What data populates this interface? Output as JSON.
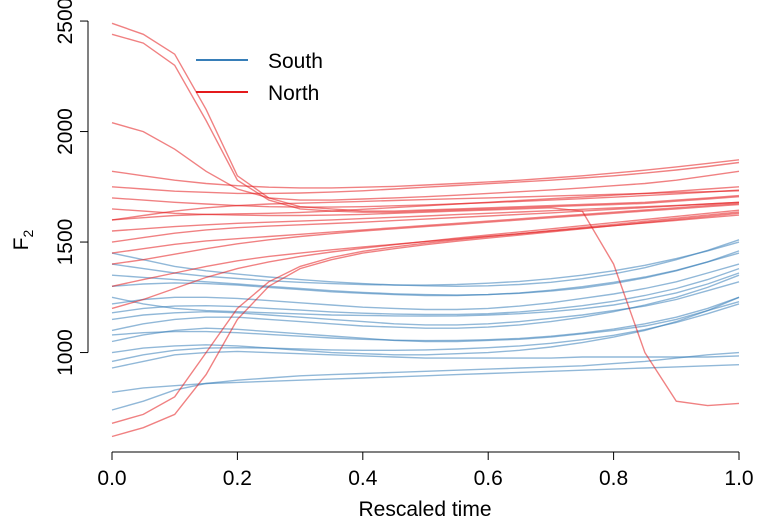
{
  "chart_data": {
    "type": "line",
    "xlabel": "Rescaled time",
    "ylabel": "F",
    "ylabel_subscript": "2",
    "xlim": [
      0.0,
      1.0
    ],
    "ylim": [
      550,
      2550
    ],
    "x_ticks": [
      "0.0",
      "0.2",
      "0.4",
      "0.6",
      "0.8",
      "1.0"
    ],
    "y_ticks": [
      "1000",
      "1500",
      "2000",
      "2500"
    ],
    "grid": false,
    "legend_position": "top-left",
    "legend": [
      {
        "name": "South",
        "color": "#377EB8"
      },
      {
        "name": "North",
        "color": "#E41A1C"
      }
    ],
    "x": [
      0.0,
      0.05,
      0.1,
      0.15,
      0.2,
      0.25,
      0.3,
      0.35,
      0.4,
      0.45,
      0.5,
      0.55,
      0.6,
      0.65,
      0.7,
      0.75,
      0.8,
      0.85,
      0.9,
      0.95,
      1.0
    ],
    "series": [
      {
        "group": "South",
        "values": [
          820,
          840,
          850,
          860,
          865,
          870,
          875,
          880,
          885,
          890,
          895,
          900,
          905,
          910,
          915,
          920,
          925,
          930,
          935,
          940,
          945
        ]
      },
      {
        "group": "South",
        "values": [
          740,
          780,
          830,
          860,
          875,
          885,
          895,
          900,
          905,
          910,
          915,
          920,
          925,
          930,
          935,
          940,
          950,
          960,
          975,
          990,
          1000
        ]
      },
      {
        "group": "South",
        "values": [
          930,
          960,
          990,
          1000,
          1005,
          1000,
          995,
          990,
          985,
          980,
          975,
          975,
          975,
          975,
          975,
          980,
          980,
          980,
          980,
          980,
          985
        ]
      },
      {
        "group": "South",
        "values": [
          1050,
          1080,
          1100,
          1110,
          1105,
          1095,
          1085,
          1075,
          1065,
          1055,
          1050,
          1050,
          1055,
          1060,
          1070,
          1085,
          1100,
          1120,
          1150,
          1190,
          1230
        ]
      },
      {
        "group": "South",
        "values": [
          1150,
          1170,
          1180,
          1185,
          1180,
          1170,
          1160,
          1150,
          1140,
          1130,
          1125,
          1125,
          1130,
          1140,
          1155,
          1170,
          1190,
          1210,
          1240,
          1280,
          1320
        ]
      },
      {
        "group": "South",
        "values": [
          1220,
          1240,
          1250,
          1250,
          1245,
          1235,
          1225,
          1215,
          1205,
          1200,
          1195,
          1195,
          1200,
          1210,
          1225,
          1245,
          1265,
          1290,
          1320,
          1360,
          1400
        ]
      },
      {
        "group": "South",
        "values": [
          1300,
          1310,
          1315,
          1312,
          1305,
          1295,
          1285,
          1275,
          1268,
          1262,
          1258,
          1258,
          1262,
          1270,
          1282,
          1298,
          1318,
          1342,
          1372,
          1410,
          1450
        ]
      },
      {
        "group": "South",
        "values": [
          1400,
          1380,
          1360,
          1345,
          1335,
          1325,
          1318,
          1312,
          1308,
          1305,
          1305,
          1308,
          1314,
          1322,
          1334,
          1350,
          1370,
          1395,
          1425,
          1460,
          1500
        ]
      },
      {
        "group": "South",
        "values": [
          1000,
          1020,
          1030,
          1035,
          1030,
          1020,
          1010,
          1000,
          995,
          990,
          990,
          995,
          1000,
          1010,
          1025,
          1045,
          1070,
          1100,
          1140,
          1190,
          1250
        ]
      },
      {
        "group": "South",
        "values": [
          1100,
          1130,
          1150,
          1160,
          1160,
          1150,
          1140,
          1130,
          1120,
          1115,
          1110,
          1110,
          1115,
          1125,
          1140,
          1160,
          1185,
          1215,
          1250,
          1295,
          1350
        ]
      },
      {
        "group": "South",
        "values": [
          1250,
          1220,
          1200,
          1190,
          1185,
          1180,
          1175,
          1170,
          1168,
          1166,
          1165,
          1166,
          1170,
          1176,
          1185,
          1198,
          1215,
          1240,
          1270,
          1310,
          1360
        ]
      },
      {
        "group": "South",
        "values": [
          1350,
          1340,
          1330,
          1320,
          1310,
          1300,
          1290,
          1280,
          1272,
          1266,
          1262,
          1260,
          1262,
          1268,
          1278,
          1292,
          1312,
          1338,
          1370,
          1410,
          1460
        ]
      },
      {
        "group": "South",
        "values": [
          1080,
          1090,
          1095,
          1095,
          1090,
          1082,
          1074,
          1066,
          1060,
          1056,
          1054,
          1055,
          1058,
          1064,
          1074,
          1088,
          1106,
          1130,
          1160,
          1200,
          1250
        ]
      },
      {
        "group": "South",
        "values": [
          960,
          990,
          1010,
          1020,
          1022,
          1020,
          1016,
          1012,
          1010,
          1010,
          1012,
          1016,
          1022,
          1030,
          1042,
          1058,
          1078,
          1104,
          1136,
          1176,
          1220
        ]
      },
      {
        "group": "South",
        "values": [
          1180,
          1200,
          1210,
          1212,
          1208,
          1200,
          1192,
          1184,
          1178,
          1174,
          1172,
          1172,
          1176,
          1184,
          1196,
          1212,
          1232,
          1258,
          1290,
          1330,
          1380
        ]
      },
      {
        "group": "South",
        "values": [
          1450,
          1420,
          1390,
          1370,
          1355,
          1342,
          1330,
          1320,
          1312,
          1306,
          1302,
          1300,
          1302,
          1308,
          1318,
          1334,
          1356,
          1384,
          1420,
          1462,
          1510
        ]
      },
      {
        "group": "North",
        "values": [
          2490,
          2440,
          2350,
          2100,
          1800,
          1700,
          1660,
          1650,
          1640,
          1640,
          1645,
          1650,
          1655,
          1660,
          1665,
          1670,
          1675,
          1680,
          1690,
          1700,
          1710
        ]
      },
      {
        "group": "North",
        "values": [
          2440,
          2400,
          2300,
          2050,
          1780,
          1690,
          1650,
          1640,
          1635,
          1635,
          1640,
          1645,
          1650,
          1655,
          1660,
          1665,
          1670,
          1675,
          1685,
          1695,
          1705
        ]
      },
      {
        "group": "North",
        "values": [
          2040,
          2000,
          1920,
          1820,
          1740,
          1700,
          1690,
          1690,
          1695,
          1700,
          1705,
          1712,
          1720,
          1728,
          1736,
          1745,
          1755,
          1765,
          1780,
          1800,
          1820
        ]
      },
      {
        "group": "North",
        "values": [
          1750,
          1740,
          1730,
          1725,
          1720,
          1720,
          1722,
          1726,
          1732,
          1740,
          1748,
          1756,
          1764,
          1772,
          1780,
          1790,
          1800,
          1812,
          1826,
          1842,
          1860
        ]
      },
      {
        "group": "North",
        "values": [
          1600,
          1610,
          1620,
          1625,
          1628,
          1630,
          1634,
          1640,
          1648,
          1656,
          1664,
          1672,
          1680,
          1688,
          1696,
          1704,
          1712,
          1720,
          1730,
          1740,
          1750
        ]
      },
      {
        "group": "North",
        "values": [
          1450,
          1470,
          1490,
          1505,
          1515,
          1525,
          1535,
          1545,
          1555,
          1565,
          1575,
          1585,
          1595,
          1605,
          1615,
          1625,
          1635,
          1645,
          1655,
          1665,
          1675
        ]
      },
      {
        "group": "North",
        "values": [
          1300,
          1330,
          1360,
          1390,
          1415,
          1435,
          1450,
          1465,
          1478,
          1490,
          1502,
          1514,
          1526,
          1538,
          1550,
          1562,
          1574,
          1586,
          1598,
          1610,
          1622
        ]
      },
      {
        "group": "North",
        "values": [
          1200,
          1240,
          1290,
          1340,
          1380,
          1410,
          1435,
          1455,
          1472,
          1488,
          1503,
          1518,
          1532,
          1546,
          1560,
          1574,
          1588,
          1602,
          1616,
          1630,
          1644
        ]
      },
      {
        "group": "North",
        "values": [
          1550,
          1560,
          1570,
          1578,
          1585,
          1590,
          1595,
          1600,
          1606,
          1612,
          1618,
          1624,
          1630,
          1636,
          1642,
          1648,
          1654,
          1660,
          1666,
          1672,
          1680
        ]
      },
      {
        "group": "North",
        "values": [
          1700,
          1690,
          1680,
          1672,
          1665,
          1660,
          1658,
          1658,
          1660,
          1664,
          1668,
          1673,
          1678,
          1684,
          1690,
          1696,
          1703,
          1710,
          1718,
          1726,
          1735
        ]
      },
      {
        "group": "North",
        "values": [
          1400,
          1420,
          1445,
          1470,
          1492,
          1510,
          1525,
          1538,
          1550,
          1560,
          1570,
          1580,
          1590,
          1600,
          1610,
          1620,
          1630,
          1640,
          1650,
          1660,
          1670
        ]
      },
      {
        "group": "North",
        "values": [
          1820,
          1800,
          1780,
          1765,
          1755,
          1748,
          1745,
          1745,
          1748,
          1752,
          1758,
          1765,
          1772,
          1780,
          1790,
          1800,
          1812,
          1825,
          1840,
          1856,
          1872
        ]
      },
      {
        "group": "North",
        "values": [
          1500,
          1520,
          1540,
          1555,
          1565,
          1572,
          1578,
          1584,
          1590,
          1597,
          1604,
          1611,
          1618,
          1625,
          1632,
          1640,
          1648,
          1656,
          1664,
          1672,
          1680
        ]
      },
      {
        "group": "North",
        "values": [
          620,
          660,
          720,
          900,
          1150,
          1300,
          1380,
          1420,
          1450,
          1470,
          1488,
          1504,
          1518,
          1532,
          1546,
          1560,
          1574,
          1588,
          1602,
          1616,
          1630
        ]
      },
      {
        "group": "North",
        "values": [
          680,
          720,
          800,
          1000,
          1200,
          1320,
          1390,
          1430,
          1458,
          1478,
          1495,
          1510,
          1524,
          1538,
          1552,
          1566,
          1580,
          1594,
          1608,
          1622,
          1636
        ]
      },
      {
        "group": "North",
        "values": [
          1600,
          1620,
          1640,
          1655,
          1665,
          1672,
          1676,
          1680,
          1684,
          1688,
          1692,
          1696,
          1700,
          1704,
          1708,
          1712,
          1716,
          1720,
          1724,
          1728,
          1732
        ]
      },
      {
        "group": "North",
        "values": [
          1650,
          1640,
          1630,
          1625,
          1622,
          1620,
          1620,
          1622,
          1625,
          1630,
          1635,
          1640,
          1645,
          1650,
          1655,
          1640,
          1400,
          1000,
          780,
          760,
          770
        ]
      }
    ]
  }
}
